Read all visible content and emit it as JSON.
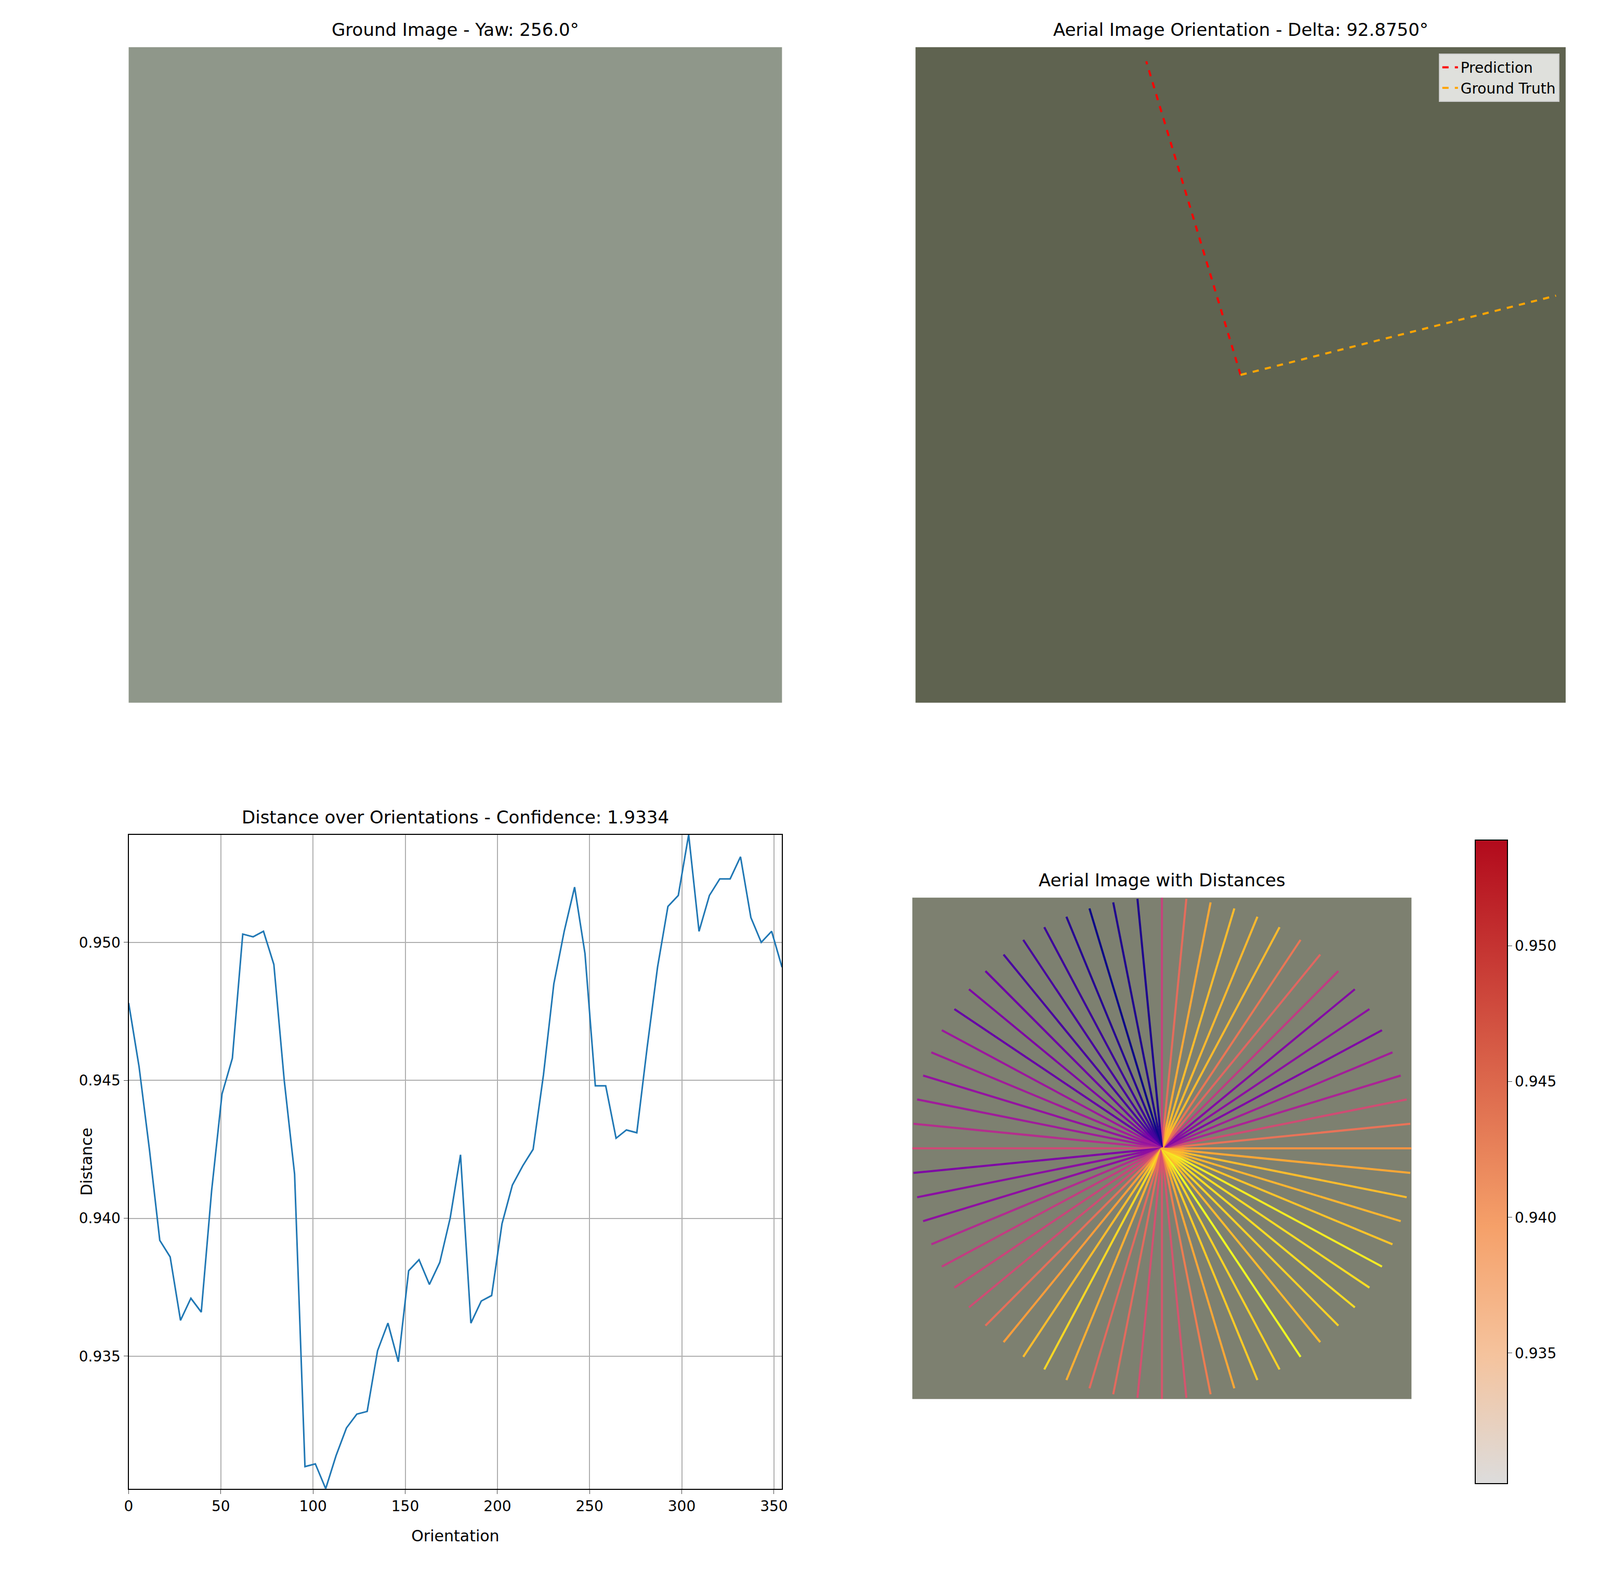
{
  "chart_data": [
    {
      "type": "image",
      "title": "Ground Image - Yaw: 256.0°"
    },
    {
      "type": "orientation",
      "title": "Aerial Image Orientation - Delta: 92.8750°",
      "legend": "upper right",
      "tick_labels": false,
      "series": [
        {
          "name": "Prediction",
          "color": "red",
          "line_style": "dashed",
          "orientation": 106.875
        },
        {
          "name": "Ground Truth",
          "color": "orange",
          "line_style": "dashed",
          "orientation": 14.0
        }
      ]
    },
    {
      "type": "line",
      "title": "Distance over Orientations - Confidence: 1.9334",
      "x_label": "Orientation",
      "y_label": "Distance",
      "grid": true,
      "color": "#1f77b4",
      "x": [
        0,
        5.625,
        11.25,
        16.875,
        22.5,
        28.125,
        33.75,
        39.375,
        45,
        50.625,
        56.25,
        61.875,
        67.5,
        73.125,
        78.75,
        84.375,
        90,
        95.625,
        101.25,
        106.875,
        112.5,
        118.125,
        123.75,
        129.375,
        135,
        140.625,
        146.25,
        151.875,
        157.5,
        163.125,
        168.75,
        174.375,
        180,
        185.625,
        191.25,
        196.875,
        202.5,
        208.125,
        213.75,
        219.375,
        225,
        230.625,
        236.25,
        241.875,
        247.5,
        253.125,
        258.75,
        264.375,
        270,
        275.625,
        281.25,
        286.875,
        292.5,
        298.125,
        303.75,
        309.375,
        315,
        320.625,
        326.25,
        331.875,
        337.5,
        343.125,
        348.75,
        354.375
      ],
      "values": [
        0.9478,
        0.9455,
        0.9425,
        0.9392,
        0.9386,
        0.9363,
        0.9371,
        0.9366,
        0.941,
        0.9445,
        0.9458,
        0.9503,
        0.9502,
        0.9504,
        0.9492,
        0.945,
        0.9416,
        0.931,
        0.9311,
        0.9302,
        0.9314,
        0.9324,
        0.9329,
        0.933,
        0.9352,
        0.9362,
        0.9348,
        0.9381,
        0.9385,
        0.9376,
        0.9384,
        0.94,
        0.9423,
        0.9362,
        0.937,
        0.9372,
        0.9398,
        0.9412,
        0.9419,
        0.9425,
        0.9452,
        0.9485,
        0.9504,
        0.952,
        0.9496,
        0.9448,
        0.9448,
        0.9429,
        0.9432,
        0.9431,
        0.9462,
        0.9491,
        0.9513,
        0.9517,
        0.9539,
        0.9504,
        0.9517,
        0.9523,
        0.9523,
        0.9531,
        0.9509,
        0.95,
        0.9504,
        0.9491
      ],
      "xlim": [
        0,
        354.375
      ],
      "ylim": [
        0.9302,
        0.9539
      ],
      "xticks": [
        0,
        50,
        100,
        150,
        200,
        250,
        300,
        350
      ],
      "yticks": [
        {
          "value": 0.935,
          "label": "0.935"
        },
        {
          "value": 0.94,
          "label": "0.940"
        },
        {
          "value": 0.945,
          "label": "0.945"
        },
        {
          "value": 0.95,
          "label": "0.950"
        }
      ]
    },
    {
      "type": "radial",
      "title": "Aerial Image with Distances",
      "tick_labels": false,
      "angles": [
        0,
        5.625,
        11.25,
        16.875,
        22.5,
        28.125,
        33.75,
        39.375,
        45,
        50.625,
        56.25,
        61.875,
        67.5,
        73.125,
        78.75,
        84.375,
        90,
        95.625,
        101.25,
        106.875,
        112.5,
        118.125,
        123.75,
        129.375,
        135,
        140.625,
        146.25,
        151.875,
        157.5,
        163.125,
        168.75,
        174.375,
        180,
        185.625,
        191.25,
        196.875,
        202.5,
        208.125,
        213.75,
        219.375,
        225,
        230.625,
        236.25,
        241.875,
        247.5,
        253.125,
        258.75,
        264.375,
        270,
        275.625,
        281.25,
        286.875,
        292.5,
        298.125,
        303.75,
        309.375,
        315,
        320.625,
        326.25,
        331.875,
        337.5,
        343.125,
        348.75,
        354.375
      ],
      "values": [
        0.9478,
        0.9455,
        0.9425,
        0.9392,
        0.9386,
        0.9363,
        0.9371,
        0.9366,
        0.941,
        0.9445,
        0.9458,
        0.9503,
        0.9502,
        0.9504,
        0.9492,
        0.945,
        0.9416,
        0.931,
        0.9311,
        0.9302,
        0.9314,
        0.9324,
        0.9329,
        0.933,
        0.9352,
        0.9362,
        0.9348,
        0.9381,
        0.9385,
        0.9376,
        0.9384,
        0.94,
        0.9423,
        0.9362,
        0.937,
        0.9372,
        0.9398,
        0.9412,
        0.9419,
        0.9425,
        0.9452,
        0.9485,
        0.9504,
        0.952,
        0.9496,
        0.9448,
        0.9448,
        0.9429,
        0.9432,
        0.9431,
        0.9462,
        0.9491,
        0.9513,
        0.9517,
        0.9539,
        0.9504,
        0.9517,
        0.9523,
        0.9523,
        0.9531,
        0.9509,
        0.95,
        0.9504,
        0.9491
      ],
      "colorbar": {
        "range": [
          0.9302,
          0.9539
        ],
        "ticks": [
          {
            "value": 0.935,
            "label": "0.935"
          },
          {
            "value": 0.94,
            "label": "0.940"
          },
          {
            "value": 0.945,
            "label": "0.945"
          },
          {
            "value": 0.95,
            "label": "0.950"
          }
        ]
      }
    }
  ]
}
